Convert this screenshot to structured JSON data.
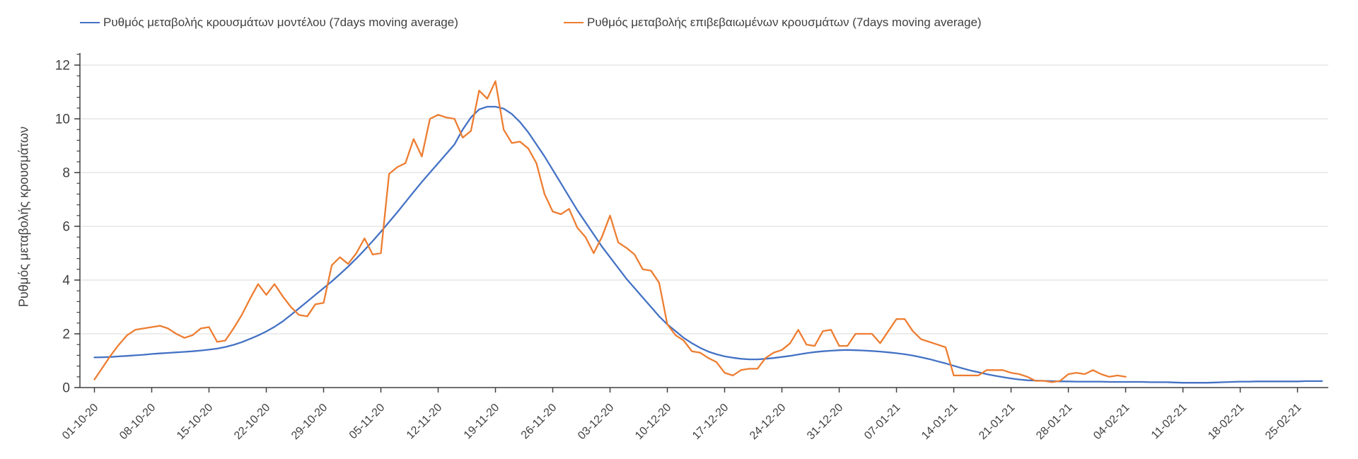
{
  "legend": {
    "model_label": "Ρυθμός μεταβολής κρουσμάτων μοντέλου (7days moving average)",
    "confirmed_label": "Ρυθμός μεταβολής επιβεβαιωμένων κρουσμάτων (7days moving average)"
  },
  "colors": {
    "model_line": "#4472C4",
    "confirmed_line": "#ED7D31",
    "axis_line": "#404040",
    "tick_text": "#404040",
    "gridline": "#D9D9D9"
  },
  "chart_data": {
    "type": "line",
    "title": "",
    "xlabel": "",
    "ylabel": "Ρυθμός μεταβολής κρουσμάτων",
    "ylim": [
      0,
      12
    ],
    "y_ticks": [
      0,
      2,
      4,
      6,
      8,
      10,
      12
    ],
    "y_minor_tick_step": 0.4,
    "grid": "horizontal",
    "legend_position": "top",
    "x_tick_labels": [
      "01-10-20",
      "08-10-20",
      "15-10-20",
      "22-10-20",
      "29-10-20",
      "05-11-20",
      "12-11-20",
      "19-11-20",
      "26-11-20",
      "03-12-20",
      "10-12-20",
      "17-12-20",
      "24-12-20",
      "31-12-20",
      "07-01-21",
      "14-01-21",
      "21-01-21",
      "28-01-21",
      "04-02-21",
      "11-02-21",
      "18-02-21",
      "25-02-21"
    ],
    "x_tick_interval_days": 7,
    "series": [
      {
        "name": "Ρυθμός μεταβολής κρουσμάτων μοντέλου (7days moving average)",
        "color": "#4472C4",
        "start_date": "01-10-20",
        "step_days": 1,
        "values": [
          1.12,
          1.13,
          1.14,
          1.16,
          1.18,
          1.2,
          1.22,
          1.25,
          1.27,
          1.29,
          1.31,
          1.33,
          1.35,
          1.38,
          1.41,
          1.45,
          1.51,
          1.59,
          1.69,
          1.81,
          1.94,
          2.09,
          2.26,
          2.46,
          2.7,
          2.95,
          3.2,
          3.45,
          3.7,
          3.95,
          4.22,
          4.5,
          4.8,
          5.12,
          5.45,
          5.8,
          6.16,
          6.52,
          6.9,
          7.28,
          7.65,
          8.0,
          8.35,
          8.7,
          9.05,
          9.6,
          10.05,
          10.35,
          10.45,
          10.45,
          10.38,
          10.18,
          9.88,
          9.5,
          9.05,
          8.6,
          8.1,
          7.6,
          7.1,
          6.6,
          6.15,
          5.7,
          5.25,
          4.85,
          4.45,
          4.05,
          3.7,
          3.35,
          3.0,
          2.65,
          2.35,
          2.1,
          1.85,
          1.65,
          1.48,
          1.34,
          1.24,
          1.16,
          1.11,
          1.07,
          1.05,
          1.05,
          1.07,
          1.1,
          1.14,
          1.18,
          1.23,
          1.28,
          1.32,
          1.35,
          1.37,
          1.39,
          1.4,
          1.39,
          1.38,
          1.36,
          1.34,
          1.31,
          1.28,
          1.24,
          1.19,
          1.13,
          1.06,
          0.98,
          0.9,
          0.81,
          0.72,
          0.64,
          0.57,
          0.5,
          0.44,
          0.39,
          0.34,
          0.3,
          0.27,
          0.26,
          0.25,
          0.24,
          0.23,
          0.23,
          0.22,
          0.22,
          0.22,
          0.22,
          0.21,
          0.21,
          0.21,
          0.21,
          0.21,
          0.2,
          0.2,
          0.2,
          0.19,
          0.18,
          0.18,
          0.18,
          0.18,
          0.19,
          0.2,
          0.21,
          0.22,
          0.22,
          0.23,
          0.23,
          0.23,
          0.23,
          0.23,
          0.23,
          0.24,
          0.24,
          0.24
        ]
      },
      {
        "name": "Ρυθμός μεταβολής επιβεβαιωμένων κρουσμάτων (7days moving average)",
        "color": "#ED7D31",
        "start_date": "01-10-20",
        "step_days": 1,
        "values": [
          0.3,
          0.75,
          1.2,
          1.6,
          1.95,
          2.15,
          2.2,
          2.25,
          2.3,
          2.2,
          2.0,
          1.85,
          1.95,
          2.2,
          2.25,
          1.7,
          1.75,
          2.2,
          2.7,
          3.3,
          3.85,
          3.45,
          3.85,
          3.4,
          3.0,
          2.7,
          2.65,
          3.1,
          3.15,
          4.55,
          4.85,
          4.6,
          5.0,
          5.55,
          4.95,
          5.0,
          7.95,
          8.2,
          8.35,
          9.25,
          8.6,
          10.0,
          10.15,
          10.05,
          10.0,
          9.3,
          9.55,
          11.05,
          10.75,
          11.4,
          9.6,
          9.1,
          9.15,
          8.9,
          8.35,
          7.2,
          6.55,
          6.45,
          6.65,
          5.95,
          5.6,
          5.0,
          5.6,
          6.4,
          5.4,
          5.2,
          4.95,
          4.4,
          4.35,
          3.9,
          2.35,
          1.95,
          1.75,
          1.35,
          1.3,
          1.1,
          0.95,
          0.55,
          0.45,
          0.65,
          0.7,
          0.7,
          1.1,
          1.3,
          1.4,
          1.65,
          2.15,
          1.6,
          1.55,
          2.1,
          2.15,
          1.55,
          1.55,
          2.0,
          2.0,
          2.0,
          1.65,
          2.1,
          2.55,
          2.55,
          2.1,
          1.8,
          1.7,
          1.6,
          1.5,
          0.45,
          0.45,
          0.45,
          0.45,
          0.65,
          0.65,
          0.65,
          0.55,
          0.5,
          0.4,
          0.25,
          0.25,
          0.2,
          0.25,
          0.5,
          0.55,
          0.5,
          0.65,
          0.5,
          0.4,
          0.45,
          0.4
        ]
      }
    ]
  }
}
